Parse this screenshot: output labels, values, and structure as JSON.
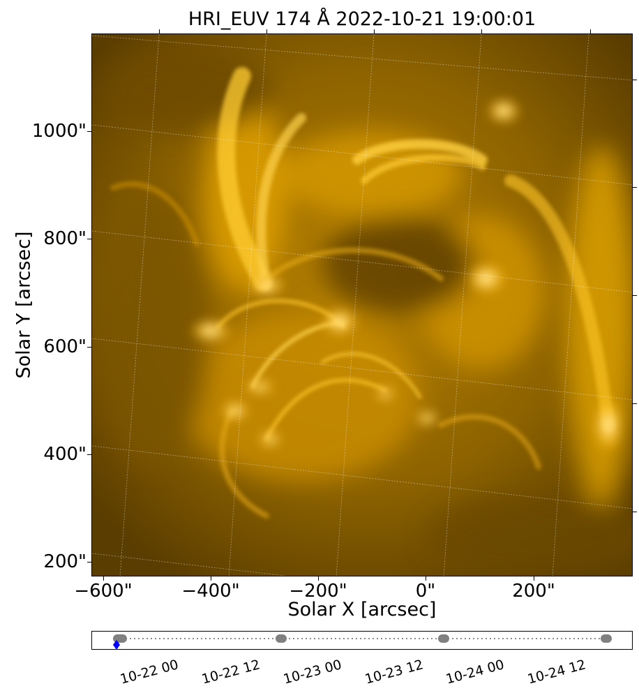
{
  "figure": {
    "title": "HRI_EUV 174 Å 2022-10-21 19:00:01",
    "xlabel": "Solar X [arcsec]",
    "ylabel": "Solar Y [arcsec]",
    "xticks": [
      "−600\"",
      "−400\"",
      "−200\"",
      "0\"",
      "200\""
    ],
    "yticks": [
      "1000\"",
      "800\"",
      "600\"",
      "400\"",
      "200\""
    ],
    "colormap": "solar orbiter 174 (gold)",
    "image_colors": {
      "dark": "#5c3f00",
      "mid": "#c98f00",
      "bright": "#ffc21a",
      "peak": "#fff0b0"
    }
  },
  "timeline": {
    "tick_labels": [
      "10-22 00",
      "10-22 12",
      "10-23 00",
      "10-23 12",
      "10-24 00",
      "10-24 12"
    ],
    "observation_color": "#808080",
    "current_marker_color": "#0000ff",
    "connector_style": "dotted"
  }
}
